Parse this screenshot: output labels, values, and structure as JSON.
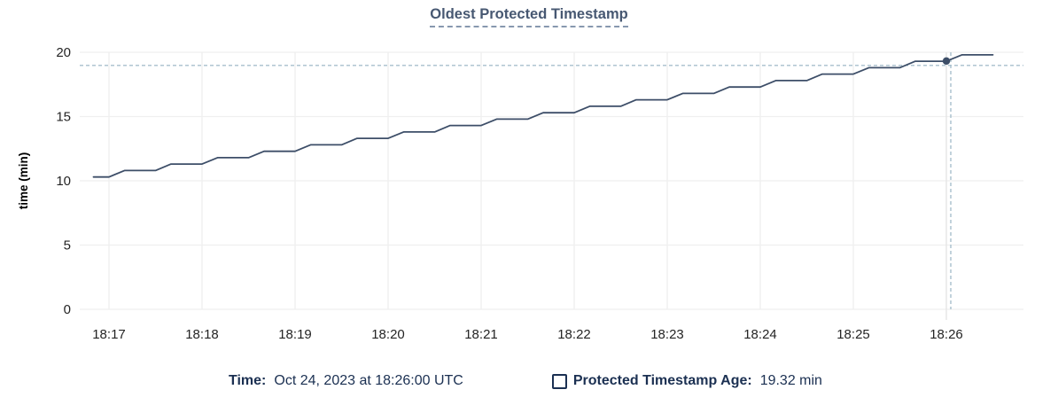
{
  "title": "Oldest Protected Timestamp",
  "colors": {
    "title": "#475872",
    "line": "#3d4e68",
    "grid": "#efefef",
    "grid_highlight": "#e3e3e3",
    "crosshair": "#a7bfcc",
    "tick_text": "#242424",
    "axis_title_text": "#000000",
    "legend_text": "#1b3052"
  },
  "chart_data": {
    "type": "line",
    "title": "Oldest Protected Timestamp",
    "xlabel": "",
    "ylabel": "time (min)",
    "ylim": [
      0,
      20
    ],
    "y_ticks": [
      0,
      5,
      10,
      15,
      20
    ],
    "x_ticks": [
      "18:17",
      "18:18",
      "18:19",
      "18:20",
      "18:21",
      "18:22",
      "18:23",
      "18:24",
      "18:25",
      "18:26"
    ],
    "grid": true,
    "legend_position": "bottom",
    "series": [
      {
        "name": "Protected Timestamp Age",
        "unit": "min",
        "start_time": "18:16:50",
        "sample_interval_seconds": 10,
        "values": [
          10.3,
          10.3,
          10.8,
          10.8,
          10.8,
          11.3,
          11.3,
          11.3,
          11.8,
          11.8,
          11.8,
          12.3,
          12.3,
          12.3,
          12.8,
          12.8,
          12.8,
          13.3,
          13.3,
          13.3,
          13.8,
          13.8,
          13.8,
          14.3,
          14.3,
          14.3,
          14.8,
          14.8,
          14.8,
          15.3,
          15.3,
          15.3,
          15.8,
          15.8,
          15.8,
          16.3,
          16.3,
          16.3,
          16.8,
          16.8,
          16.8,
          17.3,
          17.3,
          17.3,
          17.8,
          17.8,
          17.8,
          18.3,
          18.3,
          18.3,
          18.8,
          18.8,
          18.8,
          19.3,
          19.3,
          19.3,
          19.8,
          19.8,
          19.8
        ]
      }
    ],
    "hover": {
      "time": "18:26:00",
      "value": 19.32
    }
  },
  "legend": {
    "time_label": "Time:",
    "time_value": "Oct 24, 2023 at 18:26:00 UTC",
    "series_label": "Protected Timestamp Age:",
    "series_value": "19.32 min"
  }
}
